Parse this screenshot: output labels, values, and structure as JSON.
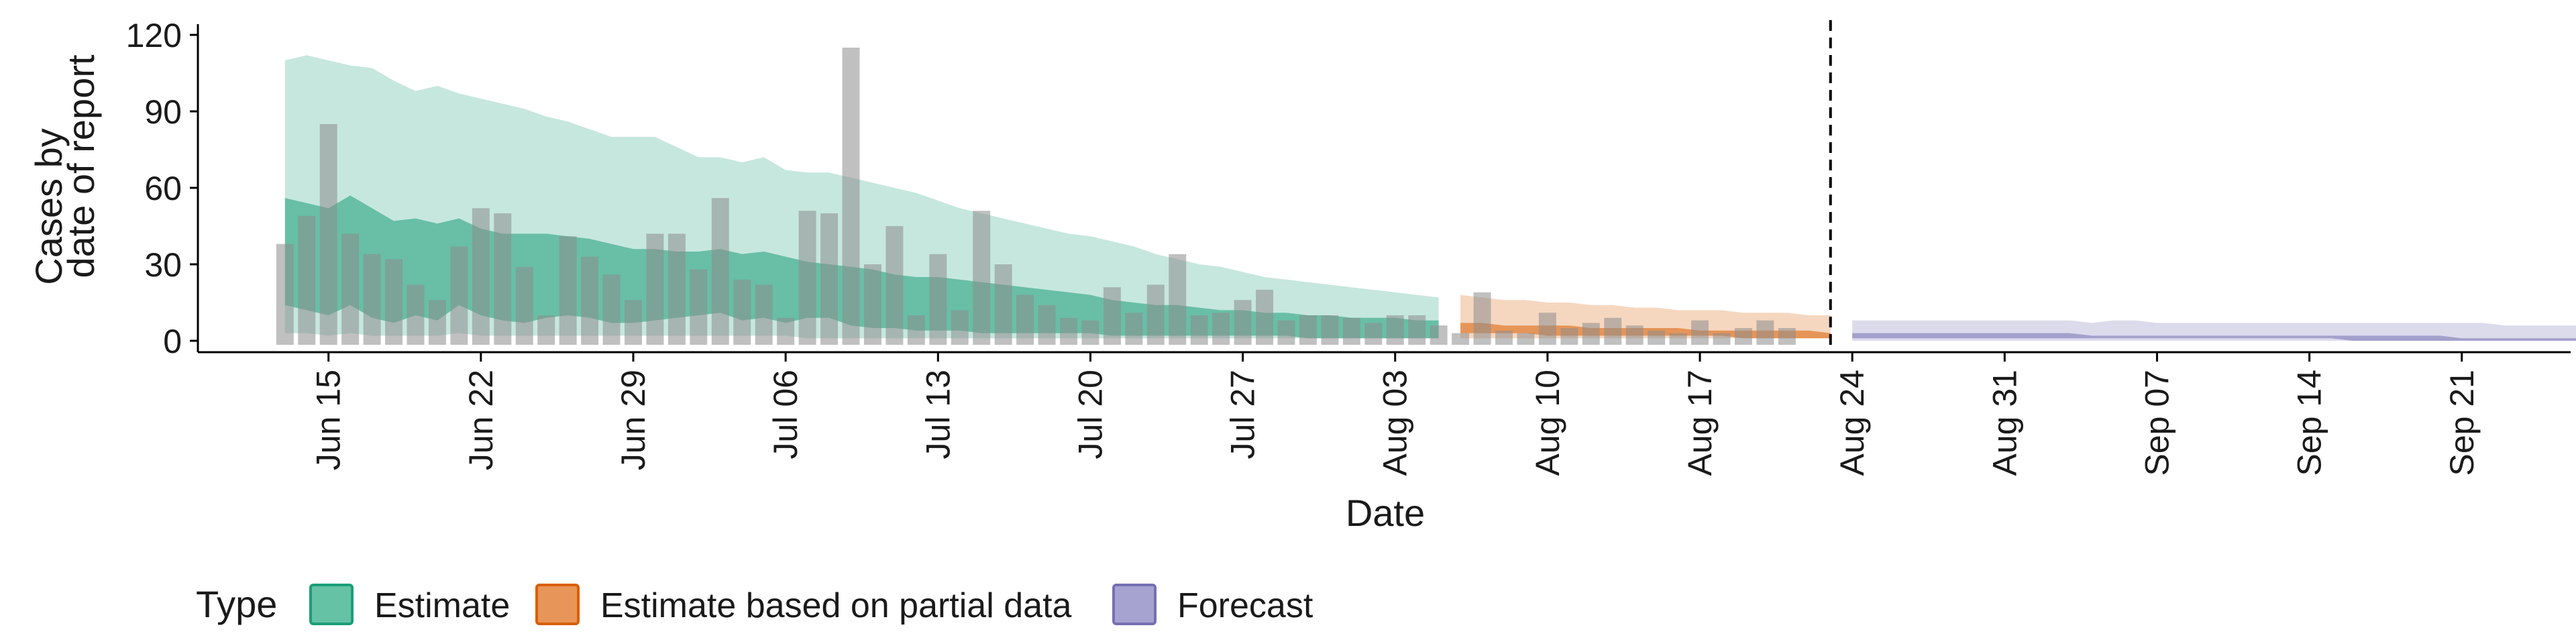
{
  "chart_data": {
    "type": "bar",
    "xlabel": "Date",
    "ylabel_lines": [
      "Cases by",
      "date of report"
    ],
    "ylim": [
      0,
      120
    ],
    "yticks": [
      0,
      30,
      60,
      90,
      120
    ],
    "x_date_range": [
      "2020-06-09",
      "2020-09-26"
    ],
    "xtick_labels": [
      {
        "date": "2020-06-15",
        "label": "Jun 15"
      },
      {
        "date": "2020-06-22",
        "label": "Jun 22"
      },
      {
        "date": "2020-06-29",
        "label": "Jun 29"
      },
      {
        "date": "2020-07-06",
        "label": "Jul 06"
      },
      {
        "date": "2020-07-13",
        "label": "Jul 13"
      },
      {
        "date": "2020-07-20",
        "label": "Jul 20"
      },
      {
        "date": "2020-07-27",
        "label": "Jul 27"
      },
      {
        "date": "2020-08-03",
        "label": "Aug 03"
      },
      {
        "date": "2020-08-10",
        "label": "Aug 10"
      },
      {
        "date": "2020-08-17",
        "label": "Aug 17"
      },
      {
        "date": "2020-08-24",
        "label": "Aug 24"
      },
      {
        "date": "2020-08-31",
        "label": "Aug 31"
      },
      {
        "date": "2020-09-07",
        "label": "Sep 07"
      },
      {
        "date": "2020-09-14",
        "label": "Sep 14"
      },
      {
        "date": "2020-09-21",
        "label": "Sep 21"
      }
    ],
    "forecast_start": "2020-08-23",
    "reported_cases": {
      "start_date": "2020-06-13",
      "values": [
        38,
        49,
        85,
        42,
        34,
        32,
        22,
        16,
        37,
        52,
        50,
        29,
        10,
        41,
        33,
        26,
        16,
        42,
        42,
        28,
        56,
        24,
        22,
        9,
        51,
        50,
        115,
        30,
        45,
        10,
        34,
        12,
        51,
        30,
        18,
        14,
        9,
        8,
        21,
        11,
        22,
        34,
        10,
        11,
        16,
        20,
        8,
        10,
        10,
        9,
        7,
        10,
        10,
        6,
        3,
        19,
        4,
        3,
        11,
        5,
        7,
        9,
        6,
        4,
        3,
        8,
        3,
        5,
        8,
        5
      ]
    },
    "series": [
      {
        "name": "Estimate",
        "color": "#1b9e77",
        "start_date": "2020-06-13",
        "upper_90": [
          110,
          112,
          110,
          108,
          107,
          102,
          98,
          100,
          97,
          95,
          93,
          91,
          88,
          86,
          83,
          80,
          80,
          80,
          76,
          72,
          72,
          70,
          72,
          67,
          66,
          66,
          64,
          62,
          60,
          58,
          55,
          52,
          50,
          48,
          46,
          44,
          42,
          41,
          39,
          37,
          34,
          32,
          30,
          29,
          27,
          25,
          24,
          23,
          22,
          21,
          20,
          19,
          18,
          17
        ],
        "upper_50": [
          56,
          54,
          52,
          57,
          52,
          47,
          48,
          46,
          48,
          44,
          42,
          42,
          42,
          41,
          40,
          38,
          36,
          36,
          35,
          35,
          36,
          34,
          35,
          33,
          31,
          30,
          29,
          28,
          26,
          25,
          25,
          24,
          23,
          22,
          21,
          20,
          19,
          18,
          16,
          15,
          14,
          14,
          13,
          12,
          12,
          11,
          11,
          10,
          10,
          9,
          9,
          9,
          8,
          8
        ],
        "lower_50": [
          14,
          12,
          10,
          14,
          9,
          7,
          10,
          8,
          14,
          10,
          8,
          7,
          9,
          10,
          9,
          7,
          7,
          8,
          9,
          10,
          11,
          8,
          9,
          7,
          9,
          9,
          6,
          5,
          5,
          4,
          4,
          4,
          3,
          3,
          3,
          3,
          3,
          3,
          2,
          2,
          2,
          2,
          2,
          2,
          2,
          2,
          2,
          1,
          1,
          1,
          1,
          1,
          1,
          1
        ],
        "lower_90": [
          3,
          3,
          2,
          3,
          2,
          2,
          2,
          2,
          3,
          2,
          2,
          2,
          2,
          2,
          2,
          2,
          2,
          2,
          2,
          2,
          2,
          2,
          2,
          2,
          1,
          1,
          1,
          1,
          1,
          1,
          1,
          1,
          1,
          1,
          1,
          1,
          1,
          1,
          1,
          1,
          1,
          1,
          1,
          1,
          1,
          1,
          1,
          1,
          1,
          1,
          1,
          1,
          1,
          1
        ]
      },
      {
        "name": "Estimate based on partial data",
        "color": "#d95f02",
        "start_date": "2020-08-06",
        "upper_90": [
          18,
          17,
          16,
          16,
          15,
          15,
          14,
          14,
          13,
          13,
          12,
          12,
          12,
          11,
          11,
          11,
          10,
          10
        ],
        "upper_50": [
          7,
          7,
          6,
          6,
          6,
          6,
          5,
          5,
          5,
          5,
          5,
          4,
          4,
          4,
          4,
          4,
          4,
          3
        ],
        "lower_50": [
          3,
          3,
          3,
          3,
          2,
          2,
          2,
          2,
          2,
          2,
          2,
          2,
          2,
          1,
          1,
          1,
          1,
          1
        ],
        "lower_90": [
          1,
          1,
          1,
          1,
          1,
          1,
          1,
          1,
          1,
          1,
          1,
          1,
          1,
          1,
          1,
          1,
          1,
          1
        ]
      },
      {
        "name": "Forecast",
        "color": "#7570b3",
        "start_date": "2020-08-24",
        "upper_90": [
          8,
          8,
          8,
          8,
          8,
          8,
          8,
          8,
          8,
          8,
          8,
          7,
          8,
          8,
          7,
          7,
          7,
          7,
          7,
          7,
          7,
          7,
          7,
          7,
          7,
          7,
          7,
          7,
          7,
          7,
          6,
          6,
          6,
          6,
          6,
          6,
          6,
          6,
          6,
          6,
          6,
          6,
          6,
          6,
          6,
          6,
          6,
          6,
          6,
          6,
          6,
          6,
          6,
          6
        ],
        "upper_50": [
          3,
          3,
          3,
          3,
          3,
          3,
          3,
          3,
          3,
          3,
          3,
          2,
          2,
          2,
          2,
          2,
          2,
          2,
          2,
          2,
          2,
          2,
          2,
          2,
          2,
          2,
          2,
          2,
          1,
          1,
          1,
          1,
          1,
          1,
          1,
          1,
          1,
          1,
          1,
          1,
          1,
          1,
          1,
          1,
          1,
          1,
          1,
          1,
          1,
          1,
          1,
          1,
          1,
          1
        ],
        "lower_50": [
          1,
          1,
          1,
          1,
          1,
          1,
          1,
          1,
          1,
          1,
          1,
          1,
          1,
          1,
          1,
          1,
          1,
          1,
          1,
          1,
          1,
          1,
          1,
          0,
          0,
          0,
          0,
          0,
          0,
          0,
          0,
          0,
          0,
          0,
          0,
          0,
          0,
          0,
          0,
          0,
          0,
          0,
          0,
          0,
          0,
          0,
          0,
          0,
          0,
          0,
          0,
          0,
          0,
          0
        ],
        "lower_90": [
          0,
          0,
          0,
          0,
          0,
          0,
          0,
          0,
          0,
          0,
          0,
          0,
          0,
          0,
          0,
          0,
          0,
          0,
          0,
          0,
          0,
          0,
          0,
          0,
          0,
          0,
          0,
          0,
          0,
          0,
          0,
          0,
          0,
          0,
          0,
          0,
          0,
          0,
          0,
          0,
          0,
          0,
          0,
          0,
          0,
          0,
          0,
          0,
          0,
          0,
          0,
          0,
          0,
          0
        ]
      }
    ],
    "legend": {
      "title": "Type",
      "position": "bottom-left",
      "items": [
        {
          "label": "Estimate",
          "fill": "#66c2a5",
          "stroke": "#1b9e77"
        },
        {
          "label": "Estimate based on partial data",
          "fill": "#e8955a",
          "stroke": "#d95f02"
        },
        {
          "label": "Forecast",
          "fill": "#a7a3d0",
          "stroke": "#7570b3"
        }
      ]
    },
    "grid": false
  }
}
